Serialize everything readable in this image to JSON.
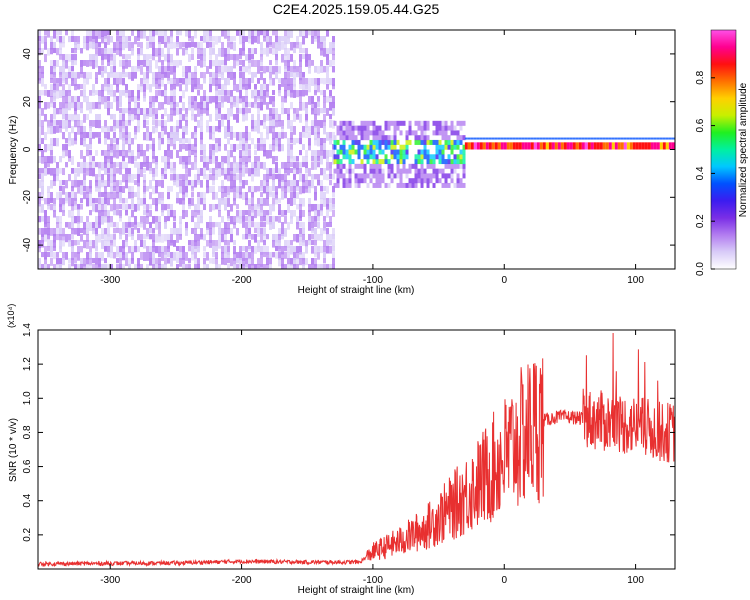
{
  "title": "C2E4.2025.159.05.44.G25",
  "chart_data": [
    {
      "type": "heatmap",
      "xlabel": "Height of straight line (km)",
      "ylabel": "Frequency (Hz)",
      "xlim": [
        -355,
        130
      ],
      "ylim": [
        -50,
        50
      ],
      "xticks": [
        -300,
        -200,
        -100,
        0,
        100
      ],
      "yticks": [
        -40,
        -20,
        0,
        20,
        40
      ],
      "colorbar": {
        "label": "Normalized spectral amplitude",
        "range": [
          0.0,
          1.0
        ],
        "ticks": [
          0.0,
          0.2,
          0.4,
          0.6,
          0.8
        ],
        "colors": [
          "#ffffff",
          "#d9ccf8",
          "#b27cf0",
          "#7a2ee6",
          "#3b1cf0",
          "#0050ff",
          "#00c8ff",
          "#00f0a0",
          "#20f020",
          "#c8f000",
          "#ffd000",
          "#ff7000",
          "#ff1010",
          "#ff0090",
          "#ff50e8"
        ]
      },
      "regions": [
        {
          "x": [
            -355,
            -130
          ],
          "y": [
            -50,
            50
          ],
          "amplitude": 0.15
        },
        {
          "x": [
            -130,
            -30
          ],
          "y": [
            -12,
            10
          ],
          "amplitude": 0.45
        },
        {
          "x": [
            -30,
            130
          ],
          "y": [
            0,
            3
          ],
          "amplitude": 0.85
        }
      ],
      "grid": false
    },
    {
      "type": "line",
      "xlabel": "Height of straight line (km)",
      "ylabel": "SNR (10 * v/v)",
      "y_multiplier": "(x10⁴)",
      "xlim": [
        -355,
        130
      ],
      "ylim": [
        0,
        1.4
      ],
      "xticks": [
        -300,
        -200,
        -100,
        0,
        100
      ],
      "yticks": [
        0.2,
        0.4,
        0.6,
        0.8,
        1.0,
        1.2,
        1.4
      ],
      "series_color": "#e83030",
      "x": [
        -355,
        -250,
        -200,
        -150,
        -110,
        -100,
        -80,
        -60,
        -40,
        -20,
        0,
        10,
        20,
        30,
        40,
        50,
        60,
        70,
        80,
        90,
        100,
        110,
        120,
        130
      ],
      "y": [
        0.03,
        0.035,
        0.045,
        0.04,
        0.04,
        0.1,
        0.16,
        0.24,
        0.36,
        0.5,
        0.66,
        0.74,
        0.82,
        0.87,
        0.89,
        0.89,
        0.88,
        0.87,
        0.86,
        0.85,
        0.84,
        0.82,
        0.8,
        0.8
      ],
      "grid": false
    }
  ]
}
